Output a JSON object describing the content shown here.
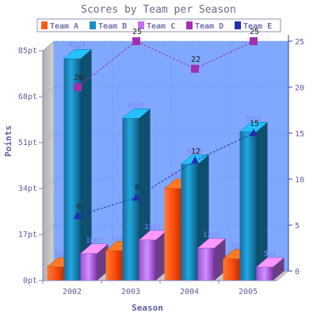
{
  "chart_data": {
    "type": "bar",
    "title": "Scores by Team per Season",
    "xlabel": "Season",
    "ylabel": "Points",
    "categories": [
      "2002",
      "2003",
      "2004",
      "2005"
    ],
    "ylim": [
      0,
      85
    ],
    "y_ticks": [
      "0pt",
      "17pt",
      "34pt",
      "51pt",
      "68pt",
      "85pt"
    ],
    "y2lim": [
      0,
      25
    ],
    "y2_ticks": [
      "0",
      "5",
      "10",
      "15",
      "20",
      "25"
    ],
    "legend_position": "top",
    "grid": true,
    "series": [
      {
        "name": "Team A",
        "type": "bar",
        "axis": "left",
        "color": "#ff5a1a",
        "values": [
          5,
          11,
          34,
          8
        ],
        "labels": [
          "5pt",
          "11pt",
          "34pt",
          "8pt"
        ]
      },
      {
        "name": "Team B",
        "type": "bar",
        "axis": "left",
        "color": "#1a8fc8",
        "values": [
          82,
          60,
          43,
          55
        ],
        "labels": [
          "82pt",
          "60pt",
          "43pt",
          "55pt"
        ]
      },
      {
        "name": "Team C",
        "type": "bar",
        "axis": "left",
        "color": "#c070f0",
        "values": [
          10,
          15,
          12,
          5
        ],
        "labels": [
          "10pt",
          "15pt",
          "12pt",
          "5pt"
        ]
      },
      {
        "name": "Team D",
        "type": "line",
        "axis": "right",
        "color": "#a030b0",
        "values": [
          20,
          25,
          22,
          25
        ],
        "labels": [
          "20",
          "25",
          "22",
          "25"
        ]
      },
      {
        "name": "Team E",
        "type": "line",
        "axis": "right",
        "color": "#2030b0",
        "values": [
          6,
          8,
          12,
          15
        ],
        "labels": [
          "6",
          "8",
          "12",
          "15"
        ]
      }
    ]
  }
}
